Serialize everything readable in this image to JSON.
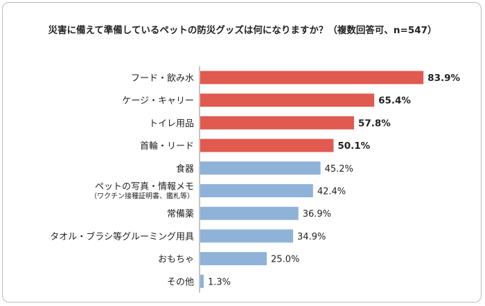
{
  "chart_data": {
    "type": "bar",
    "orientation": "horizontal",
    "title": "災害に備えて準備しているペットの防災グッズは何になりますか？（複数回答可、n=547）",
    "categories": [
      "フード・飲み水",
      "ケージ・キャリー",
      "トイレ用品",
      "首輪・リード",
      "食器",
      "ペットの写真・情報メモ",
      "常備薬",
      "タオル・ブラシ等グルーミング用具",
      "おもちゃ",
      "その他"
    ],
    "category_sublabels": {
      "ペットの写真・情報メモ": "（ワクチン接種証明書、鑑札等）"
    },
    "values": [
      83.9,
      65.4,
      57.8,
      50.1,
      45.2,
      42.4,
      36.9,
      34.9,
      25.0,
      1.3
    ],
    "value_labels": [
      "83.9%",
      "65.4%",
      "57.8%",
      "50.1%",
      "45.2%",
      "42.4%",
      "36.9%",
      "34.9%",
      "25.0%",
      "1.3%"
    ],
    "highlighted_top": 4,
    "xlim": [
      0,
      100
    ],
    "colors": {
      "highlight": "#e05a4f",
      "normal": "#8fb2d8",
      "axis": "#888888"
    },
    "grid": false,
    "legend": "none"
  }
}
